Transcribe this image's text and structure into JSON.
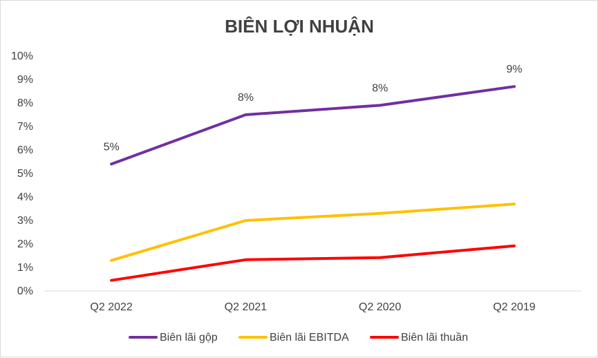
{
  "chart_data": {
    "type": "line",
    "title": "BIÊN LỢI NHUẬN",
    "xlabel": "",
    "ylabel": "",
    "categories": [
      "Q2 2022",
      "Q2 2021",
      "Q2 2020",
      "Q2 2019"
    ],
    "ylim": [
      0,
      10
    ],
    "yticks": [
      "0%",
      "1%",
      "2%",
      "3%",
      "4%",
      "5%",
      "6%",
      "7%",
      "8%",
      "9%",
      "10%"
    ],
    "grid": false,
    "legend_position": "bottom",
    "series": [
      {
        "name": "Biên lãi gộp",
        "color": "#7030A0",
        "values": [
          5.4,
          7.5,
          7.9,
          8.7
        ],
        "data_labels": [
          "5%",
          "8%",
          "8%",
          "9%"
        ]
      },
      {
        "name": "Biên lãi EBITDA",
        "color": "#FFC000",
        "values": [
          1.3,
          3.0,
          3.3,
          3.7
        ]
      },
      {
        "name": "Biên lãi thuần",
        "color": "#FF0000",
        "values": [
          0.45,
          1.33,
          1.42,
          1.92
        ]
      }
    ]
  }
}
